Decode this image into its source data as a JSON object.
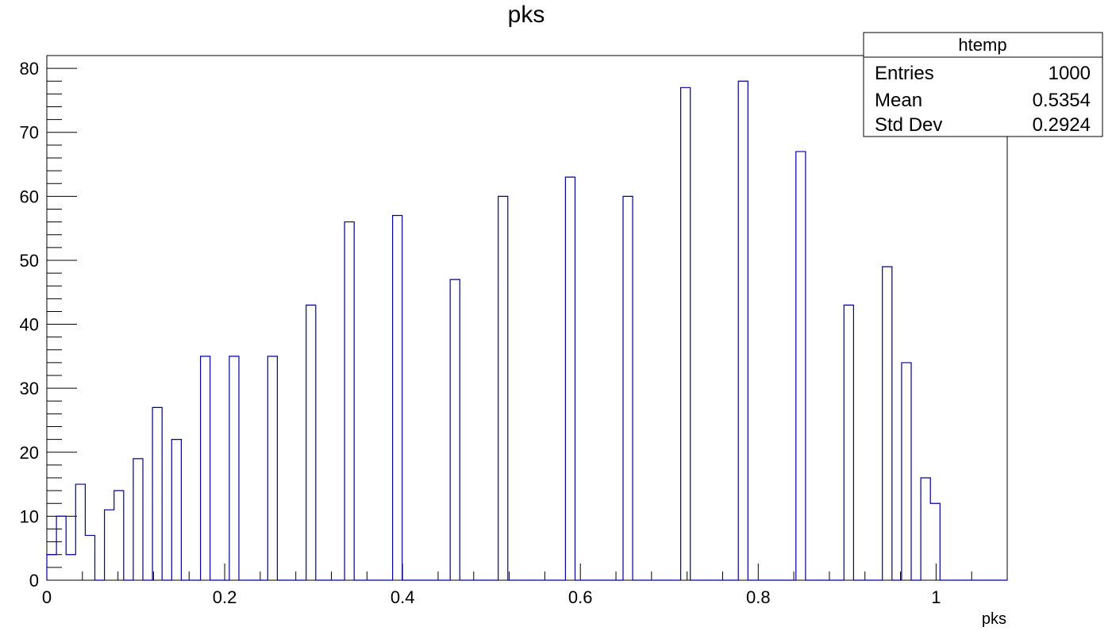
{
  "chart_data": {
    "type": "bar",
    "title": "pks",
    "xlabel": "pks",
    "ylabel": "",
    "xlim": [
      0,
      1.08
    ],
    "ylim": [
      0,
      82
    ],
    "bin_width": 0.0108,
    "x_ticks": [
      0,
      0.2,
      0.4,
      0.6,
      0.8,
      1
    ],
    "x_tick_labels": [
      "0",
      "0.2",
      "0.4",
      "0.6",
      "0.8",
      "1"
    ],
    "y_ticks": [
      0,
      10,
      20,
      30,
      40,
      50,
      60,
      70,
      80
    ],
    "y_tick_labels": [
      "0",
      "10",
      "20",
      "30",
      "40",
      "50",
      "60",
      "70",
      "80"
    ],
    "grid": false,
    "line_color": "#000099",
    "bins": [
      {
        "x": 0.0,
        "value": 4
      },
      {
        "x": 0.0108,
        "value": 10
      },
      {
        "x": 0.0216,
        "value": 4
      },
      {
        "x": 0.0324,
        "value": 15
      },
      {
        "x": 0.0432,
        "value": 7
      },
      {
        "x": 0.0648,
        "value": 11
      },
      {
        "x": 0.0756,
        "value": 14
      },
      {
        "x": 0.0972,
        "value": 19
      },
      {
        "x": 0.1188,
        "value": 27
      },
      {
        "x": 0.1404,
        "value": 22
      },
      {
        "x": 0.1728,
        "value": 35
      },
      {
        "x": 0.2052,
        "value": 35
      },
      {
        "x": 0.2484,
        "value": 35
      },
      {
        "x": 0.2916,
        "value": 43
      },
      {
        "x": 0.3348,
        "value": 56
      },
      {
        "x": 0.3888,
        "value": 57
      },
      {
        "x": 0.4536,
        "value": 47
      },
      {
        "x": 0.5076,
        "value": 60
      },
      {
        "x": 0.5832,
        "value": 63
      },
      {
        "x": 0.648,
        "value": 60
      },
      {
        "x": 0.7128,
        "value": 77
      },
      {
        "x": 0.7776,
        "value": 78
      },
      {
        "x": 0.8424,
        "value": 67
      },
      {
        "x": 0.8964,
        "value": 43
      },
      {
        "x": 0.9396,
        "value": 49
      },
      {
        "x": 0.9612,
        "value": 34
      },
      {
        "x": 0.9828,
        "value": 16
      },
      {
        "x": 0.9936,
        "value": 12
      }
    ],
    "stats_box": {
      "title": "htemp",
      "rows": [
        {
          "label": "Entries",
          "value": "1000"
        },
        {
          "label": "Mean",
          "value": "0.5354"
        },
        {
          "label": "Std Dev",
          "value": "0.2924"
        }
      ]
    }
  }
}
